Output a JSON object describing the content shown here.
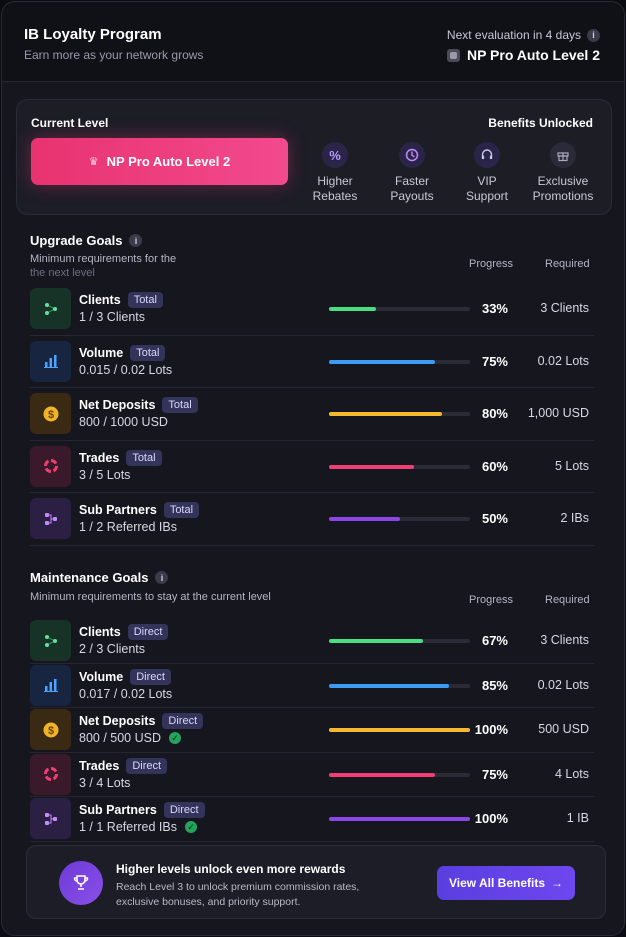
{
  "header": {
    "title": "IB Loyalty Program",
    "subtitle": "Earn more as your network grows",
    "evaluation": "Next evaluation in 4 days",
    "current_level_name": "NP Pro Auto Level 2"
  },
  "level_panel": {
    "current_level_label": "Current Level",
    "level_name": "NP Pro Auto Level 2",
    "benefits_label": "Benefits Unlocked",
    "benefits": [
      {
        "icon": "percent-icon",
        "line1": "Higher",
        "line2": "Rebates"
      },
      {
        "icon": "clock-icon",
        "line1": "Faster",
        "line2": "Payouts"
      },
      {
        "icon": "headset-icon",
        "line1": "VIP",
        "line2": "Support"
      },
      {
        "icon": "gift-icon",
        "line1": "Exclusive",
        "line2": "Promotions"
      }
    ]
  },
  "upgrade": {
    "title": "Upgrade Goals",
    "subtitle_line1": "Minimum requirements for the",
    "subtitle_line2": "the next level",
    "col_progress": "Progress",
    "col_required": "Required",
    "rows": [
      {
        "name": "Clients",
        "tag": "Total",
        "value": "1 / 3 Clients",
        "pct": "33%",
        "progress": 0.33,
        "required": "3 Clients",
        "color": "#4ade80",
        "icon": "network-icon"
      },
      {
        "name": "Volume",
        "tag": "Total",
        "value": "0.015 / 0.02 Lots",
        "pct": "75%",
        "progress": 0.75,
        "required": "0.02 Lots",
        "color": "#3b9cf5",
        "icon": "bar-chart-icon"
      },
      {
        "name": "Net Deposits",
        "tag": "Total",
        "value": "800 / 1000 USD",
        "pct": "80%",
        "progress": 0.8,
        "required": "1,000 USD",
        "color": "#f5b82e",
        "icon": "dollar-coin-icon"
      },
      {
        "name": "Trades",
        "tag": "Total",
        "value": "3 / 5 Lots",
        "pct": "60%",
        "progress": 0.6,
        "required": "5 Lots",
        "color": "#ef3e74",
        "icon": "ring-icon"
      },
      {
        "name": "Sub Partners",
        "tag": "Total",
        "value": "1 / 2 Referred IBs",
        "pct": "50%",
        "progress": 0.5,
        "required": "2 IBs",
        "color": "#8b46e8",
        "icon": "hierarchy-icon"
      }
    ]
  },
  "maintenance": {
    "title": "Maintenance Goals",
    "subtitle": "Minimum requirements to stay at the current level",
    "col_progress": "Progress",
    "col_required": "Required",
    "rows": [
      {
        "name": "Clients",
        "tag": "Direct",
        "value": "2 / 3 Clients",
        "pct": "67%",
        "progress": 0.67,
        "required": "3 Clients",
        "color": "#4ade80",
        "icon": "network-icon",
        "done": false
      },
      {
        "name": "Volume",
        "tag": "Direct",
        "value": "0.017 / 0.02 Lots",
        "pct": "85%",
        "progress": 0.85,
        "required": "0.02 Lots",
        "color": "#3b9cf5",
        "icon": "bar-chart-icon",
        "done": false
      },
      {
        "name": "Net Deposits",
        "tag": "Direct",
        "value": "800 / 500 USD",
        "pct": "100%",
        "progress": 1.0,
        "required": "500 USD",
        "color": "#f5b82e",
        "icon": "dollar-coin-icon",
        "done": true
      },
      {
        "name": "Trades",
        "tag": "Direct",
        "value": "3 / 4 Lots",
        "pct": "75%",
        "progress": 0.75,
        "required": "4 Lots",
        "color": "#ef3e74",
        "icon": "ring-icon",
        "done": false
      },
      {
        "name": "Sub Partners",
        "tag": "Direct",
        "value": "1 / 1 Referred IBs",
        "pct": "100%",
        "progress": 1.0,
        "required": "1 IB",
        "color": "#8b46e8",
        "icon": "hierarchy-icon",
        "done": true
      }
    ]
  },
  "footer": {
    "title": "Higher levels unlock even more rewards",
    "text": "Reach Level 3 to unlock premium commission rates, exclusive bonuses, and priority support.",
    "button": "View All Benefits",
    "button_arrow": "→"
  }
}
